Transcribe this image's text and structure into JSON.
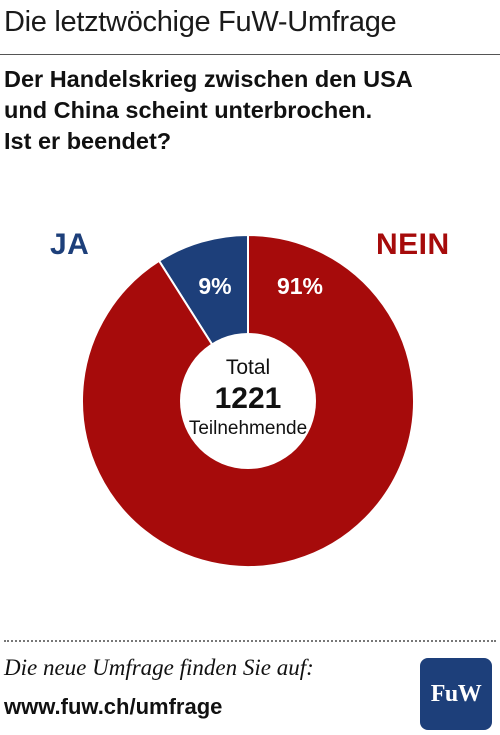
{
  "header": {
    "title": "Die letztwöchige FuW-Umfrage"
  },
  "question": {
    "lines": [
      "Der Handelskrieg zwischen den USA",
      "und China scheint unterbrochen.",
      "Ist er beendet?"
    ]
  },
  "colors": {
    "ja": "#1d3f7a",
    "nein": "#a60b0b",
    "logo": "#1d3f7a"
  },
  "chart_data": {
    "type": "pie",
    "style": "donut",
    "categories": [
      "JA",
      "NEIN"
    ],
    "values": [
      9,
      91
    ],
    "value_labels": [
      "9%",
      "91%"
    ],
    "legend_placement": "top-left / top-right",
    "center": {
      "line1": "Total",
      "line2": "1221",
      "line3": "Teilnehmende"
    }
  },
  "footer": {
    "text": "Die neue Umfrage finden Sie auf:",
    "url": "www.fuw.ch/umfrage",
    "logo_text": "FuW"
  }
}
